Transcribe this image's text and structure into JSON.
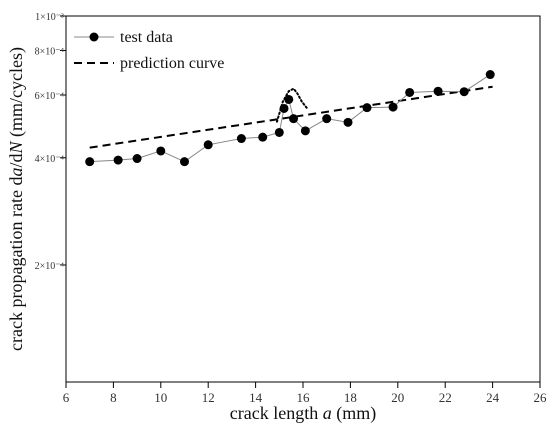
{
  "chart_data": {
    "type": "line",
    "xlabel": "crack length a (mm)",
    "xlabel_parts": [
      "crack length ",
      "a",
      " (mm)"
    ],
    "ylabel": "crack propagation rate da/dN (mm/cycles)",
    "ylabel_parts": [
      "crack propagation rate d",
      "a",
      "/d",
      "N",
      " (mm/cycles)"
    ],
    "xlim": [
      6,
      26
    ],
    "ylim": [
      5e-05,
      0.001
    ],
    "y_scale": "log",
    "grid": false,
    "legend_position": "top-left",
    "x_ticks": [
      6,
      8,
      10,
      12,
      14,
      16,
      18,
      20,
      22,
      24,
      26
    ],
    "y_ticks": [
      {
        "value": 0.001,
        "label": "1×10⁻³"
      },
      {
        "value": 0.0008,
        "label": "8×10⁻⁴"
      },
      {
        "value": 0.0006,
        "label": "6×10⁻⁴"
      },
      {
        "value": 0.0004,
        "label": "4×10⁻⁴"
      },
      {
        "value": 0.0002,
        "label": "2×10⁻⁴"
      }
    ],
    "series": [
      {
        "name": "test data",
        "style": "solid-markers",
        "color": "#000000",
        "line_color": "#888888",
        "x": [
          7.0,
          8.2,
          9.0,
          10.0,
          11.0,
          12.0,
          13.4,
          14.3,
          15.0,
          15.2,
          15.4,
          15.6,
          16.1,
          17.0,
          17.9,
          18.7,
          19.8,
          20.5,
          21.7,
          22.8,
          23.9
        ],
        "y": [
          0.00039,
          0.000394,
          0.000398,
          0.000418,
          0.00039,
          0.000435,
          0.000453,
          0.000457,
          0.000471,
          0.00055,
          0.000583,
          0.000515,
          0.000476,
          0.000515,
          0.000503,
          0.000553,
          0.000555,
          0.00061,
          0.000615,
          0.000613,
          0.000685
        ]
      },
      {
        "name": "prediction curve",
        "style": "dashed",
        "color": "#000000",
        "x": [
          7.0,
          24.0
        ],
        "y": [
          0.000427,
          0.000633
        ]
      }
    ],
    "annotation_dotted_bump": {
      "x": [
        14.9,
        15.15,
        15.4,
        15.6,
        15.75,
        15.95,
        16.2
      ],
      "y": [
        0.000505,
        0.000575,
        0.000615,
        0.000625,
        0.000608,
        0.000575,
        0.000548
      ]
    }
  }
}
